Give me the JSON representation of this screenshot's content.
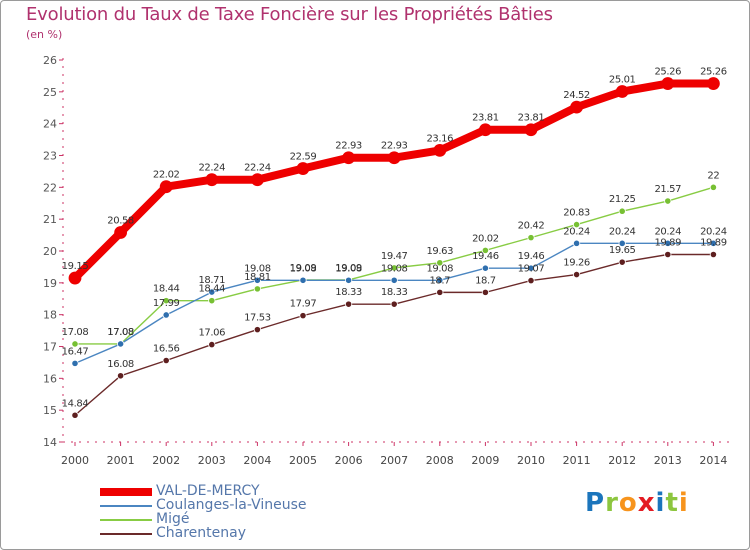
{
  "chart_data": {
    "type": "line",
    "title": "Evolution du Taux de Taxe Foncière sur les Propriétés Bâties",
    "subtitle": "(en %)",
    "xlabel": "",
    "ylabel": "(en %)",
    "x": [
      "2000",
      "2001",
      "2002",
      "2003",
      "2004",
      "2005",
      "2006",
      "2007",
      "2008",
      "2009",
      "2010",
      "2011",
      "2012",
      "2013",
      "2014"
    ],
    "ylim": [
      14,
      26
    ],
    "yticks": [
      "14",
      "15",
      "16",
      "17",
      "18",
      "19",
      "20",
      "21",
      "22",
      "23",
      "24",
      "25",
      "26"
    ],
    "grid": false,
    "legend_position": "bottom-left",
    "series": [
      {
        "name": "VAL-DE-MERCY",
        "color": "#ee0000",
        "values": [
          19.15,
          20.58,
          22.02,
          22.24,
          22.24,
          22.59,
          22.93,
          22.93,
          23.16,
          23.81,
          23.81,
          24.52,
          25.01,
          25.26,
          25.26
        ],
        "labels": [
          "19.15",
          "20.58",
          "22.02",
          "22.24",
          "22.24",
          "22.59",
          "22.93",
          "22.93",
          "23.16",
          "23.81",
          "23.81",
          "24.52",
          "25.01",
          "25.26",
          "25.26"
        ]
      },
      {
        "name": "Coulanges-la-Vineuse",
        "color": "#4b86c1",
        "values": [
          16.47,
          17.08,
          17.99,
          18.71,
          19.08,
          19.08,
          19.08,
          19.08,
          19.08,
          19.46,
          19.46,
          20.24,
          20.24,
          20.24,
          20.24
        ],
        "labels": [
          "16.47",
          "17.08",
          "17.99",
          "18.71",
          "19.08",
          "19.08",
          "19.08",
          "19.08",
          "19.08",
          "19.46",
          "19.46",
          "20.24",
          "20.24",
          "20.24",
          "20.24"
        ]
      },
      {
        "name": "Migé",
        "color": "#88cc44",
        "values": [
          17.08,
          17.08,
          18.44,
          18.44,
          18.81,
          19.09,
          19.09,
          19.47,
          19.63,
          20.02,
          20.42,
          20.83,
          21.25,
          21.57,
          22
        ],
        "labels": [
          "17.08",
          "17.08",
          "18.44",
          "18.44",
          "18.81",
          "19.09",
          "19.09",
          "19.47",
          "19.63",
          "20.02",
          "20.42",
          "20.83",
          "21.25",
          "21.57",
          "22"
        ]
      },
      {
        "name": "Charentenay",
        "color": "#6b2a2a",
        "values": [
          14.84,
          16.08,
          16.56,
          17.06,
          17.53,
          17.97,
          18.33,
          18.33,
          18.7,
          18.7,
          19.07,
          19.26,
          19.65,
          19.89,
          19.89
        ],
        "labels": [
          "14.84",
          "16.08",
          "16.56",
          "17.06",
          "17.53",
          "17.97",
          "18.33",
          "18.33",
          "18.7",
          "18.7",
          "19.07",
          "19.26",
          "19.65",
          "19.89",
          "19.89"
        ]
      }
    ]
  },
  "logo": {
    "text": [
      "P",
      "r",
      "o",
      "x",
      "i",
      "t",
      "i"
    ],
    "colors": [
      "#1b75bc",
      "#8dc63f",
      "#f7941d",
      "#e31b23",
      "#1b75bc",
      "#8dc63f",
      "#f7941d"
    ]
  }
}
